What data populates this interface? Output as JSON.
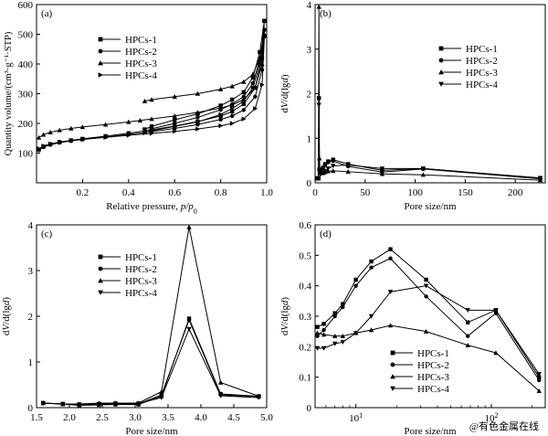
{
  "figure": {
    "watermark": "@有色金属在线"
  },
  "chart_data": [
    {
      "id": "a",
      "panel_label": "(a)",
      "type": "line",
      "xlabel": "Relative pressure, ",
      "xlabel_italic": "p/p",
      "xlabel_sub": "0",
      "ylabel": "Quantity volume/(cm³·g⁻¹·STP)",
      "xlim": [
        0,
        1.0
      ],
      "ylim": [
        0,
        600
      ],
      "x_ticks": [
        0.2,
        0.4,
        0.6,
        0.8,
        1.0
      ],
      "x_tick_labels": [
        "0.2",
        "0.4",
        "0.6",
        "0.8",
        "1.0"
      ],
      "y_ticks": [
        100,
        200,
        300,
        400,
        500,
        600
      ],
      "y_tick_labels": [
        "100",
        "200",
        "300",
        "400",
        "500",
        "600"
      ],
      "legend_position": "top-left",
      "series": [
        {
          "name": "HPCs-1",
          "marker": "square",
          "x": [
            0.01,
            0.03,
            0.06,
            0.1,
            0.15,
            0.2,
            0.3,
            0.4,
            0.5,
            0.6,
            0.7,
            0.8,
            0.85,
            0.9,
            0.95,
            0.98,
            0.99,
            0.99,
            0.97,
            0.94,
            0.9,
            0.85,
            0.8,
            0.7,
            0.6,
            0.5,
            0.47
          ],
          "y": [
            112,
            122,
            130,
            137,
            143,
            148,
            157,
            167,
            178,
            191,
            206,
            225,
            240,
            265,
            320,
            420,
            545,
            545,
            440,
            355,
            305,
            280,
            260,
            232,
            212,
            190,
            180
          ]
        },
        {
          "name": "HPCs-2",
          "marker": "circle",
          "x": [
            0.01,
            0.03,
            0.06,
            0.1,
            0.15,
            0.2,
            0.3,
            0.4,
            0.5,
            0.6,
            0.7,
            0.8,
            0.85,
            0.9,
            0.95,
            0.98,
            0.99,
            0.99,
            0.97,
            0.94,
            0.9,
            0.85,
            0.8,
            0.7,
            0.6,
            0.5,
            0.47
          ],
          "y": [
            110,
            120,
            128,
            135,
            141,
            146,
            154,
            163,
            172,
            183,
            196,
            213,
            225,
            245,
            290,
            380,
            515,
            515,
            415,
            335,
            290,
            265,
            246,
            220,
            200,
            182,
            172
          ]
        },
        {
          "name": "HPCs-3",
          "marker": "triangle-up",
          "x": [
            0.01,
            0.03,
            0.06,
            0.1,
            0.15,
            0.2,
            0.3,
            0.4,
            0.45,
            0.5,
            0.6,
            0.7,
            0.8,
            0.85,
            0.9,
            0.95,
            0.98,
            0.99,
            0.99,
            0.97,
            0.94,
            0.9,
            0.85,
            0.8,
            0.7,
            0.6,
            0.5,
            0.47
          ],
          "y": [
            152,
            162,
            170,
            177,
            183,
            188,
            196,
            205,
            210,
            215,
            225,
            237,
            252,
            262,
            280,
            320,
            400,
            500,
            500,
            420,
            365,
            340,
            325,
            315,
            300,
            290,
            280,
            275
          ]
        },
        {
          "name": "HPCs-4",
          "marker": "triangle-right",
          "x": [
            0.01,
            0.03,
            0.06,
            0.1,
            0.15,
            0.2,
            0.3,
            0.4,
            0.5,
            0.6,
            0.7,
            0.8,
            0.85,
            0.9,
            0.95,
            0.98,
            0.99,
            0.99,
            0.97,
            0.94,
            0.9,
            0.85,
            0.8,
            0.7,
            0.6,
            0.5,
            0.47
          ],
          "y": [
            115,
            124,
            131,
            137,
            142,
            146,
            153,
            160,
            166,
            173,
            181,
            192,
            200,
            215,
            250,
            330,
            490,
            490,
            400,
            320,
            275,
            250,
            230,
            205,
            190,
            175,
            168
          ]
        }
      ]
    },
    {
      "id": "b",
      "panel_label": "(b)",
      "type": "line",
      "xlabel": "Pore size/nm",
      "ylabel_pre": "d",
      "ylabel_italic": "V",
      "ylabel_post": "/d(lg",
      "ylabel_italic2": "d",
      "ylabel_end": ")",
      "xlim": [
        0,
        230
      ],
      "ylim": [
        0,
        4
      ],
      "x_ticks": [
        0,
        50,
        100,
        150,
        200
      ],
      "x_tick_labels": [
        "0",
        "50",
        "100",
        "150",
        "200"
      ],
      "y_ticks": [
        0,
        1,
        2,
        3,
        4
      ],
      "y_tick_labels": [
        "0",
        "1",
        "2",
        "3",
        "4"
      ],
      "legend_position": "top-right",
      "series": [
        {
          "name": "HPCs-1",
          "marker": "square",
          "x": [
            1.6,
            2.7,
            3.3,
            3.8,
            4.3,
            4.9,
            6,
            8,
            10,
            13,
            18,
            33,
            67,
            108,
            225
          ],
          "y": [
            0.1,
            0.1,
            0.1,
            1.9,
            0.3,
            0.25,
            0.27,
            0.34,
            0.42,
            0.48,
            0.52,
            0.42,
            0.28,
            0.32,
            0.1
          ]
        },
        {
          "name": "HPCs-2",
          "marker": "circle",
          "x": [
            1.6,
            2.7,
            3.3,
            3.8,
            4.3,
            4.9,
            6,
            8,
            10,
            13,
            18,
            33,
            67,
            108,
            225
          ],
          "y": [
            0.1,
            0.1,
            0.1,
            1.9,
            0.3,
            0.23,
            0.25,
            0.33,
            0.4,
            0.46,
            0.49,
            0.37,
            0.24,
            0.31,
            0.09
          ]
        },
        {
          "name": "HPCs-3",
          "marker": "triangle-up",
          "x": [
            1.6,
            2.7,
            3.3,
            3.8,
            4.3,
            4.9,
            6,
            8,
            10,
            13,
            18,
            33,
            67,
            108,
            225
          ],
          "y": [
            0.1,
            0.1,
            0.1,
            3.95,
            0.55,
            0.25,
            0.24,
            0.22,
            0.24,
            0.26,
            0.27,
            0.25,
            0.2,
            0.18,
            0.06
          ]
        },
        {
          "name": "HPCs-4",
          "marker": "triangle-down",
          "x": [
            1.6,
            2.7,
            3.3,
            3.8,
            4.3,
            4.9,
            6,
            8,
            10,
            13,
            18,
            33,
            67,
            108,
            225
          ],
          "y": [
            0.1,
            0.1,
            0.1,
            1.75,
            0.25,
            0.2,
            0.2,
            0.22,
            0.26,
            0.32,
            0.38,
            0.4,
            0.32,
            0.32,
            0.11
          ]
        }
      ]
    },
    {
      "id": "c",
      "panel_label": "(c)",
      "type": "line",
      "xlabel": "Pore size/nm",
      "ylabel_pre": "d",
      "ylabel_italic": "V",
      "ylabel_post": "/d(lg",
      "ylabel_italic2": "d",
      "ylabel_end": ")",
      "xlim": [
        1.5,
        5.0
      ],
      "ylim": [
        0,
        4
      ],
      "x_ticks": [
        1.5,
        2.0,
        2.5,
        3.0,
        3.5,
        4.0,
        4.5,
        5.0
      ],
      "x_tick_labels": [
        "1.5",
        "2.0",
        "2.5",
        "3.0",
        "3.5",
        "4.0",
        "4.5",
        "5.0"
      ],
      "y_ticks": [
        0,
        1,
        2,
        3,
        4
      ],
      "y_tick_labels": [
        "0",
        "1",
        "2",
        "3",
        "4"
      ],
      "legend_position": "top-left",
      "series": [
        {
          "name": "HPCs-1",
          "marker": "square",
          "x": [
            1.6,
            1.9,
            2.15,
            2.45,
            2.7,
            3.05,
            3.4,
            3.82,
            4.3,
            4.88
          ],
          "y": [
            0.1,
            0.08,
            0.05,
            0.06,
            0.07,
            0.07,
            0.25,
            1.95,
            0.3,
            0.25
          ]
        },
        {
          "name": "HPCs-2",
          "marker": "circle",
          "x": [
            1.6,
            1.9,
            2.15,
            2.45,
            2.7,
            3.05,
            3.4,
            3.82,
            4.3,
            4.88
          ],
          "y": [
            0.1,
            0.08,
            0.06,
            0.07,
            0.08,
            0.08,
            0.28,
            1.92,
            0.28,
            0.24
          ]
        },
        {
          "name": "HPCs-3",
          "marker": "triangle-up",
          "x": [
            1.6,
            1.9,
            2.15,
            2.45,
            2.7,
            3.05,
            3.4,
            3.82,
            4.3,
            4.88
          ],
          "y": [
            0.1,
            0.08,
            0.08,
            0.1,
            0.1,
            0.1,
            0.35,
            3.95,
            0.55,
            0.25
          ]
        },
        {
          "name": "HPCs-4",
          "marker": "triangle-down",
          "x": [
            1.6,
            1.9,
            2.15,
            2.45,
            2.7,
            3.05,
            3.4,
            3.82,
            4.3,
            4.88
          ],
          "y": [
            0.1,
            0.08,
            0.07,
            0.08,
            0.09,
            0.09,
            0.22,
            1.72,
            0.26,
            0.22
          ]
        }
      ]
    },
    {
      "id": "d",
      "panel_label": "(d)",
      "type": "line",
      "xscale": "log",
      "xlabel": "Pore size/nm",
      "ylabel_pre": "d",
      "ylabel_italic": "V",
      "ylabel_post": "/d(lg",
      "ylabel_italic2": "d",
      "ylabel_end": ")",
      "xlim": [
        5,
        250
      ],
      "ylim": [
        0,
        0.6
      ],
      "x_ticks": [
        10,
        100
      ],
      "x_tick_base": "10",
      "x_tick_exponents": [
        "1",
        "2"
      ],
      "y_ticks": [
        0,
        0.1,
        0.2,
        0.3,
        0.4,
        0.5,
        0.6
      ],
      "y_tick_labels": [
        "0",
        "0.1",
        "0.2",
        "0.3",
        "0.4",
        "0.5",
        "0.6"
      ],
      "legend_position": "bottom-center",
      "series": [
        {
          "name": "HPCs-1",
          "marker": "square",
          "x": [
            5.2,
            5.8,
            7,
            8,
            10,
            13,
            18,
            33,
            67,
            108,
            225
          ],
          "y": [
            0.265,
            0.275,
            0.31,
            0.34,
            0.42,
            0.48,
            0.52,
            0.42,
            0.28,
            0.32,
            0.1
          ]
        },
        {
          "name": "HPCs-2",
          "marker": "circle",
          "x": [
            5.2,
            5.8,
            7,
            8,
            10,
            13,
            18,
            33,
            67,
            108,
            225
          ],
          "y": [
            0.235,
            0.255,
            0.3,
            0.33,
            0.4,
            0.46,
            0.49,
            0.365,
            0.235,
            0.31,
            0.09
          ]
        },
        {
          "name": "HPCs-3",
          "marker": "triangle-up",
          "x": [
            5.2,
            5.8,
            7,
            8,
            10,
            13,
            18,
            33,
            67,
            108,
            225
          ],
          "y": [
            0.245,
            0.24,
            0.235,
            0.235,
            0.245,
            0.255,
            0.27,
            0.25,
            0.205,
            0.18,
            0.055
          ]
        },
        {
          "name": "HPCs-4",
          "marker": "triangle-down",
          "x": [
            5.2,
            5.8,
            7,
            8,
            10,
            13,
            18,
            33,
            67,
            108,
            225
          ],
          "y": [
            0.195,
            0.195,
            0.21,
            0.215,
            0.245,
            0.3,
            0.38,
            0.4,
            0.32,
            0.32,
            0.11
          ]
        }
      ]
    }
  ]
}
